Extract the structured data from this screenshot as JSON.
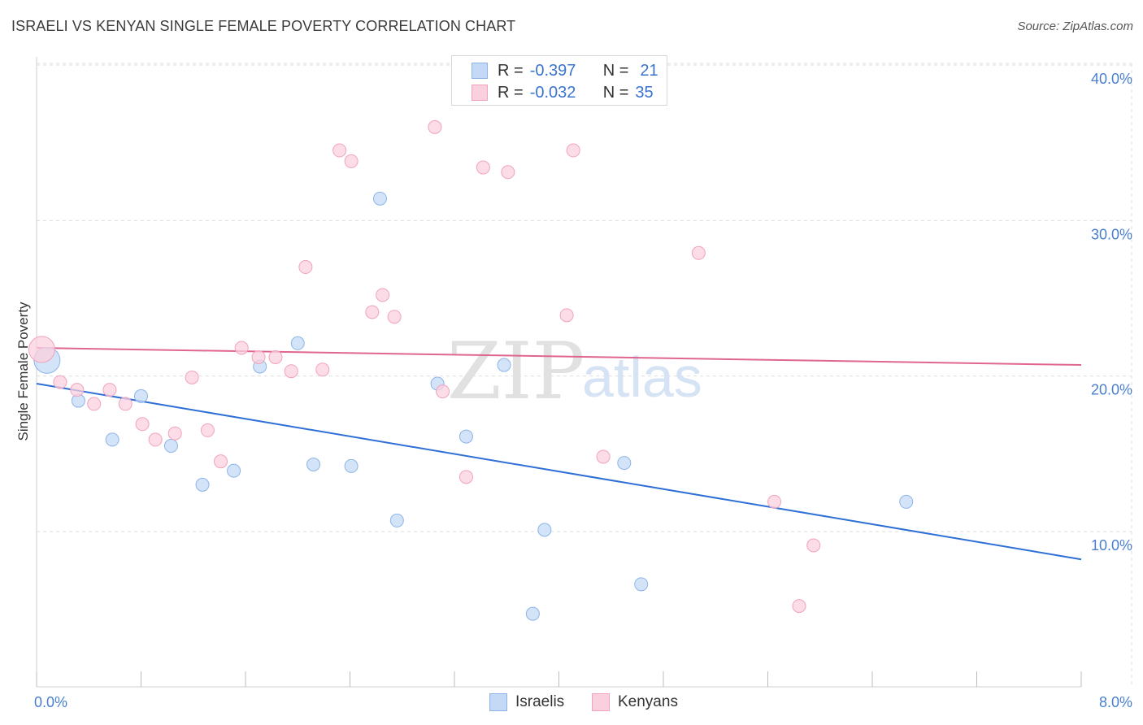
{
  "title": "ISRAELI VS KENYAN SINGLE FEMALE POVERTY CORRELATION CHART",
  "source": "Source: ZipAtlas.com",
  "watermark": {
    "zip": "ZIP",
    "atlas": "atlas"
  },
  "legend": {
    "israelis": {
      "r_label": "R =",
      "r_value": "-0.397",
      "n_label": "N =",
      "n_value": "21"
    },
    "kenyans": {
      "r_label": "R =",
      "r_value": "-0.032",
      "n_label": "N =",
      "n_value": "35"
    }
  },
  "colors": {
    "israelis_fill": "#c4d9f5",
    "israelis_stroke": "#8db4e8",
    "israelis_line": "#2e6fd6",
    "kenyans_fill": "#fbd0de",
    "kenyans_stroke": "#f0a3bd",
    "kenyans_line": "#e0668f",
    "grid": "#dddddd",
    "tick_label": "#4a7fcf"
  },
  "chart_data": {
    "type": "scatter",
    "title": "ISRAELI VS KENYAN SINGLE FEMALE POVERTY CORRELATION CHART",
    "xlabel": "",
    "ylabel": "Single Female Poverty",
    "xlim": [
      0.0,
      8.0
    ],
    "ylim": [
      0.0,
      40.0
    ],
    "x_tick_labels": [
      "0.0%",
      "8.0%"
    ],
    "y_ticks": [
      10,
      20,
      30,
      40
    ],
    "y_tick_labels": [
      "10.0%",
      "20.0%",
      "30.0%",
      "40.0%"
    ],
    "series": [
      {
        "name": "Israelis",
        "points": [
          {
            "x": 0.08,
            "y": 21.9,
            "size": "large"
          },
          {
            "x": 0.32,
            "y": 19.3
          },
          {
            "x": 0.58,
            "y": 16.8
          },
          {
            "x": 0.8,
            "y": 19.6
          },
          {
            "x": 1.03,
            "y": 16.4
          },
          {
            "x": 1.27,
            "y": 13.9
          },
          {
            "x": 1.51,
            "y": 14.8
          },
          {
            "x": 1.71,
            "y": 21.5
          },
          {
            "x": 2.0,
            "y": 23.0
          },
          {
            "x": 2.12,
            "y": 15.2
          },
          {
            "x": 2.41,
            "y": 15.1
          },
          {
            "x": 2.63,
            "y": 32.3
          },
          {
            "x": 2.76,
            "y": 11.6
          },
          {
            "x": 3.07,
            "y": 20.4
          },
          {
            "x": 3.29,
            "y": 17.0
          },
          {
            "x": 3.58,
            "y": 21.6
          },
          {
            "x": 3.8,
            "y": 5.6
          },
          {
            "x": 3.89,
            "y": 11.0
          },
          {
            "x": 4.5,
            "y": 15.3
          },
          {
            "x": 4.63,
            "y": 7.5
          },
          {
            "x": 6.66,
            "y": 12.8
          }
        ],
        "trend": {
          "x1": 0.0,
          "y1": 20.4,
          "x2": 8.0,
          "y2": 9.1
        }
      },
      {
        "name": "Kenyans",
        "points": [
          {
            "x": 0.04,
            "y": 22.6,
            "size": "large"
          },
          {
            "x": 0.18,
            "y": 20.5
          },
          {
            "x": 0.31,
            "y": 20.0
          },
          {
            "x": 0.44,
            "y": 19.1
          },
          {
            "x": 0.56,
            "y": 20.0
          },
          {
            "x": 0.68,
            "y": 19.1
          },
          {
            "x": 0.81,
            "y": 17.8
          },
          {
            "x": 0.91,
            "y": 16.8
          },
          {
            "x": 1.06,
            "y": 17.2
          },
          {
            "x": 1.19,
            "y": 20.8
          },
          {
            "x": 1.31,
            "y": 17.4
          },
          {
            "x": 1.41,
            "y": 15.4
          },
          {
            "x": 1.57,
            "y": 22.7
          },
          {
            "x": 1.7,
            "y": 22.1
          },
          {
            "x": 1.83,
            "y": 22.1
          },
          {
            "x": 1.95,
            "y": 21.2
          },
          {
            "x": 2.06,
            "y": 27.9
          },
          {
            "x": 2.19,
            "y": 21.3
          },
          {
            "x": 2.32,
            "y": 35.4
          },
          {
            "x": 2.41,
            "y": 34.7
          },
          {
            "x": 2.57,
            "y": 25.0
          },
          {
            "x": 2.65,
            "y": 26.1
          },
          {
            "x": 2.74,
            "y": 24.7
          },
          {
            "x": 3.05,
            "y": 36.9
          },
          {
            "x": 3.11,
            "y": 19.9
          },
          {
            "x": 3.29,
            "y": 14.4
          },
          {
            "x": 3.42,
            "y": 34.3
          },
          {
            "x": 3.61,
            "y": 34.0
          },
          {
            "x": 4.06,
            "y": 24.8
          },
          {
            "x": 4.11,
            "y": 35.4
          },
          {
            "x": 4.34,
            "y": 15.7
          },
          {
            "x": 5.07,
            "y": 28.8
          },
          {
            "x": 5.65,
            "y": 12.8
          },
          {
            "x": 5.95,
            "y": 10.0
          },
          {
            "x": 5.84,
            "y": 6.1
          }
        ],
        "trend": {
          "x1": 0.0,
          "y1": 22.7,
          "x2": 8.0,
          "y2": 21.6
        }
      }
    ]
  }
}
